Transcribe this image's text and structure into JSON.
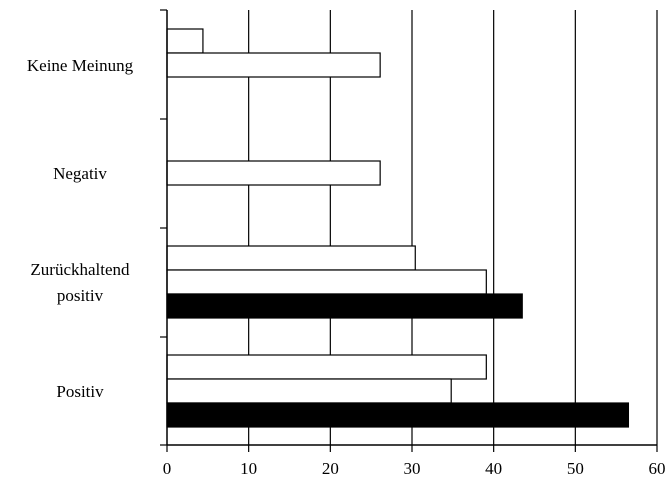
{
  "chart_data": {
    "type": "bar",
    "orientation": "horizontal",
    "title": "",
    "xlabel": "",
    "ylabel": "",
    "xlim": [
      0,
      60
    ],
    "xticks": [
      "0",
      "10",
      "20",
      "30",
      "40",
      "50",
      "60"
    ],
    "grid": "vertical lines",
    "legend": "none",
    "colors": {
      "filled": "#000000",
      "hollow": "#ffffff",
      "stroke": "#000000"
    },
    "categories": [
      {
        "label_lines": [
          "Keine Meinung"
        ],
        "bars": [
          {
            "value": 4.4,
            "fill": "hollow"
          },
          {
            "value": 26.1,
            "fill": "hollow"
          },
          {
            "value": 0,
            "fill": "filled"
          }
        ]
      },
      {
        "label_lines": [
          "Negativ"
        ],
        "bars": [
          {
            "value": 0,
            "fill": "hollow"
          },
          {
            "value": 26.1,
            "fill": "hollow"
          },
          {
            "value": 0,
            "fill": "filled"
          }
        ]
      },
      {
        "label_lines": [
          "Zurückhaltend",
          "positiv"
        ],
        "bars": [
          {
            "value": 30.4,
            "fill": "hollow"
          },
          {
            "value": 39.1,
            "fill": "hollow"
          },
          {
            "value": 43.5,
            "fill": "filled"
          }
        ]
      },
      {
        "label_lines": [
          "Positiv"
        ],
        "bars": [
          {
            "value": 39.1,
            "fill": "hollow"
          },
          {
            "value": 34.8,
            "fill": "hollow"
          },
          {
            "value": 56.5,
            "fill": "filled"
          }
        ]
      }
    ]
  }
}
